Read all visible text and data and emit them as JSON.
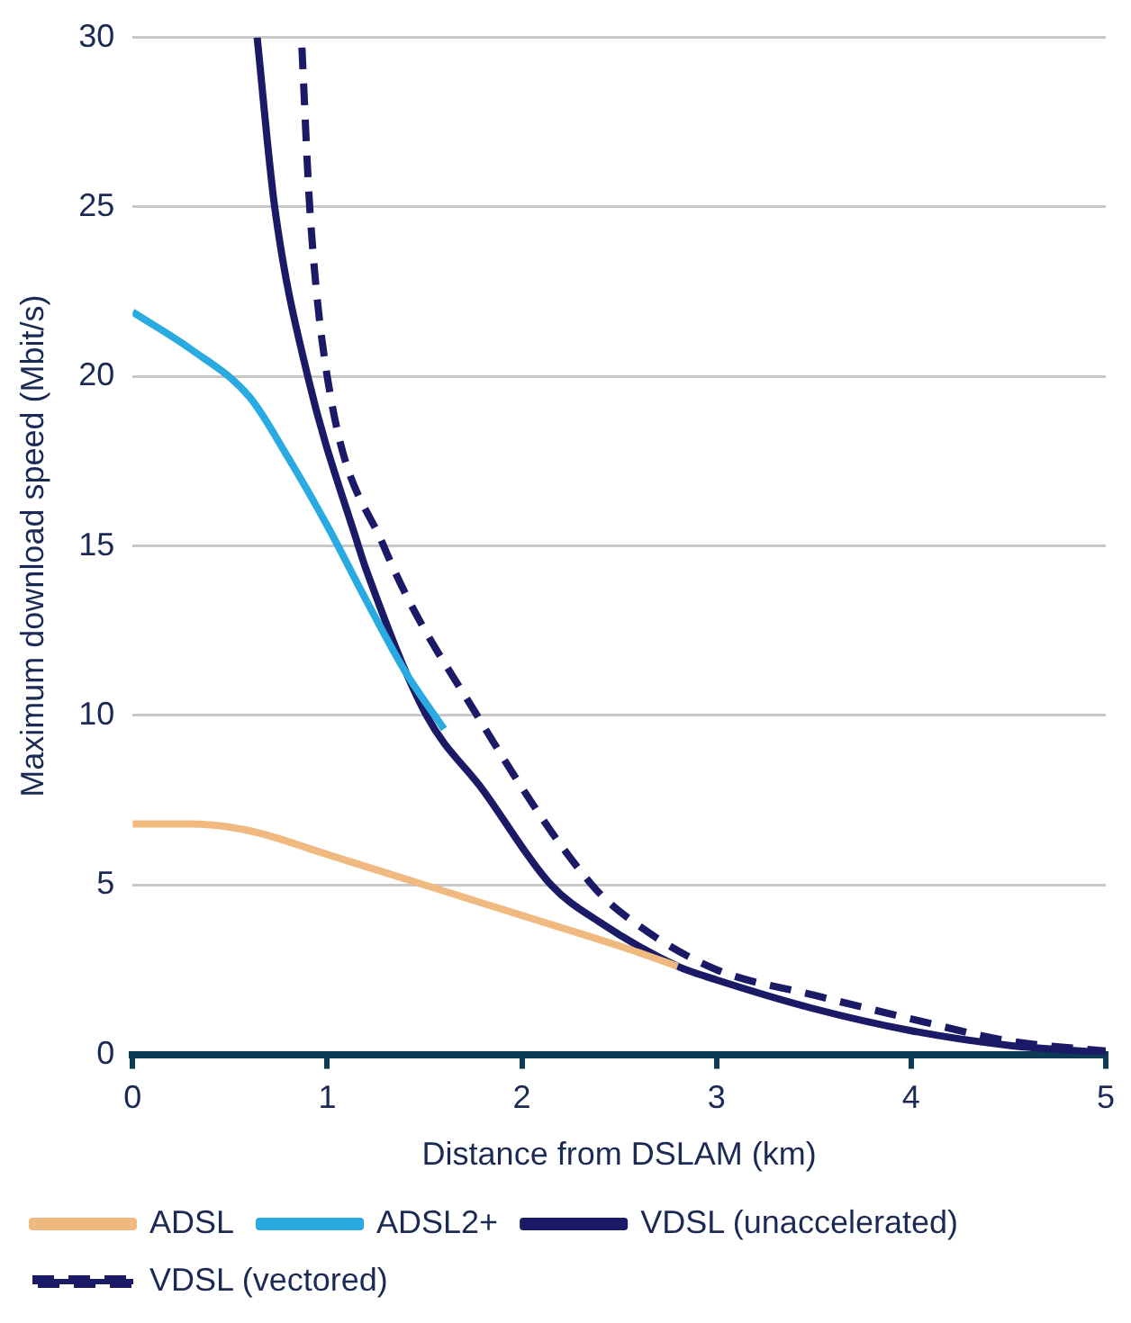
{
  "chart_data": {
    "type": "line",
    "xlabel": "Distance from DSLAM (km)",
    "ylabel": "Maximum download speed (Mbit/s)",
    "xlim": [
      0,
      5
    ],
    "xticks": [
      0,
      1,
      2,
      3,
      4,
      5
    ],
    "ylim": [
      0,
      30
    ],
    "yticks": [
      0,
      5,
      10,
      15,
      20,
      25,
      30
    ],
    "grid": "y",
    "legend": "bottom",
    "marker": "none",
    "series": [
      {
        "name": "ADSL",
        "color": "#f0b97f",
        "line_style": "solid",
        "x": [
          0,
          0.3,
          0.6,
          1,
          1.5,
          2,
          2.5,
          2.8
        ],
        "values": [
          6.8,
          6.8,
          6.6,
          5.9,
          5.0,
          4.1,
          3.2,
          2.6
        ]
      },
      {
        "name": "ADSL2+",
        "color": "#29abe2",
        "line_style": "solid",
        "x": [
          0,
          0.3,
          0.6,
          0.8,
          1,
          1.2,
          1.4,
          1.6
        ],
        "values": [
          21.9,
          20.8,
          19.4,
          17.6,
          15.6,
          13.4,
          11.3,
          9.6
        ]
      },
      {
        "name": "VDSL (unaccelerated)",
        "color": "#1b1a66",
        "line_style": "solid",
        "x": [
          0.64,
          0.73,
          0.9,
          1.16,
          1.2,
          1.51,
          1.8,
          2.15,
          2.4,
          2.8,
          3,
          3.5,
          4,
          4.5,
          5
        ],
        "values": [
          30,
          25,
          20,
          15,
          14.3,
          10,
          7.8,
          5,
          3.9,
          2.6,
          2.2,
          1.35,
          0.7,
          0.27,
          0.05
        ]
      },
      {
        "name": "VDSL (vectored)",
        "color": "#1b1a66",
        "line_style": "dashed",
        "x": [
          0.87,
          0.91,
          1,
          1.29,
          1.77,
          2.36,
          2.6,
          3,
          3.5,
          4,
          4.5,
          5
        ],
        "values": [
          29.7,
          25,
          20,
          15,
          10,
          5,
          3.8,
          2.5,
          1.75,
          1.05,
          0.4,
          0.1
        ]
      }
    ]
  }
}
